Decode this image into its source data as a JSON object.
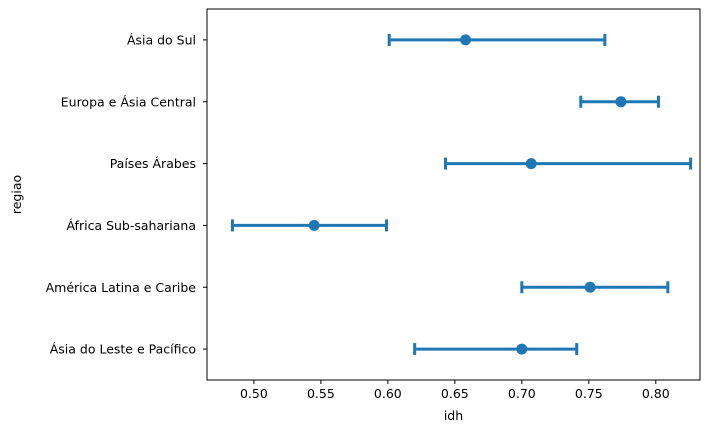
{
  "chart_data": {
    "type": "pointplot",
    "orientation": "horizontal",
    "xlabel": "idh",
    "ylabel": "regiao",
    "xlim": [
      0.465,
      0.833
    ],
    "xticks": [
      0.5,
      0.55,
      0.6,
      0.65,
      0.7,
      0.75,
      0.8
    ],
    "x_tick_labels": [
      "0.50",
      "0.55",
      "0.60",
      "0.65",
      "0.70",
      "0.75",
      "0.80"
    ],
    "grid": false,
    "color": "#1f77b4",
    "categories": [
      "Ásia do Sul",
      "Europa e Ásia Central",
      "Países Árabes",
      "África Sub-sahariana",
      "América Latina e Caribe",
      "Ásia do Leste e Pacífico"
    ],
    "points": [
      {
        "category": "Ásia do Sul",
        "value": 0.658,
        "ci": [
          0.601,
          0.762
        ]
      },
      {
        "category": "Europa e Ásia Central",
        "value": 0.774,
        "ci": [
          0.744,
          0.802
        ]
      },
      {
        "category": "Países Árabes",
        "value": 0.707,
        "ci": [
          0.643,
          0.826
        ]
      },
      {
        "category": "África Sub-sahariana",
        "value": 0.545,
        "ci": [
          0.484,
          0.599
        ]
      },
      {
        "category": "América Latina e Caribe",
        "value": 0.751,
        "ci": [
          0.7,
          0.809
        ]
      },
      {
        "category": "Ásia do Leste e Pacífico",
        "value": 0.7,
        "ci": [
          0.62,
          0.741
        ]
      }
    ]
  }
}
